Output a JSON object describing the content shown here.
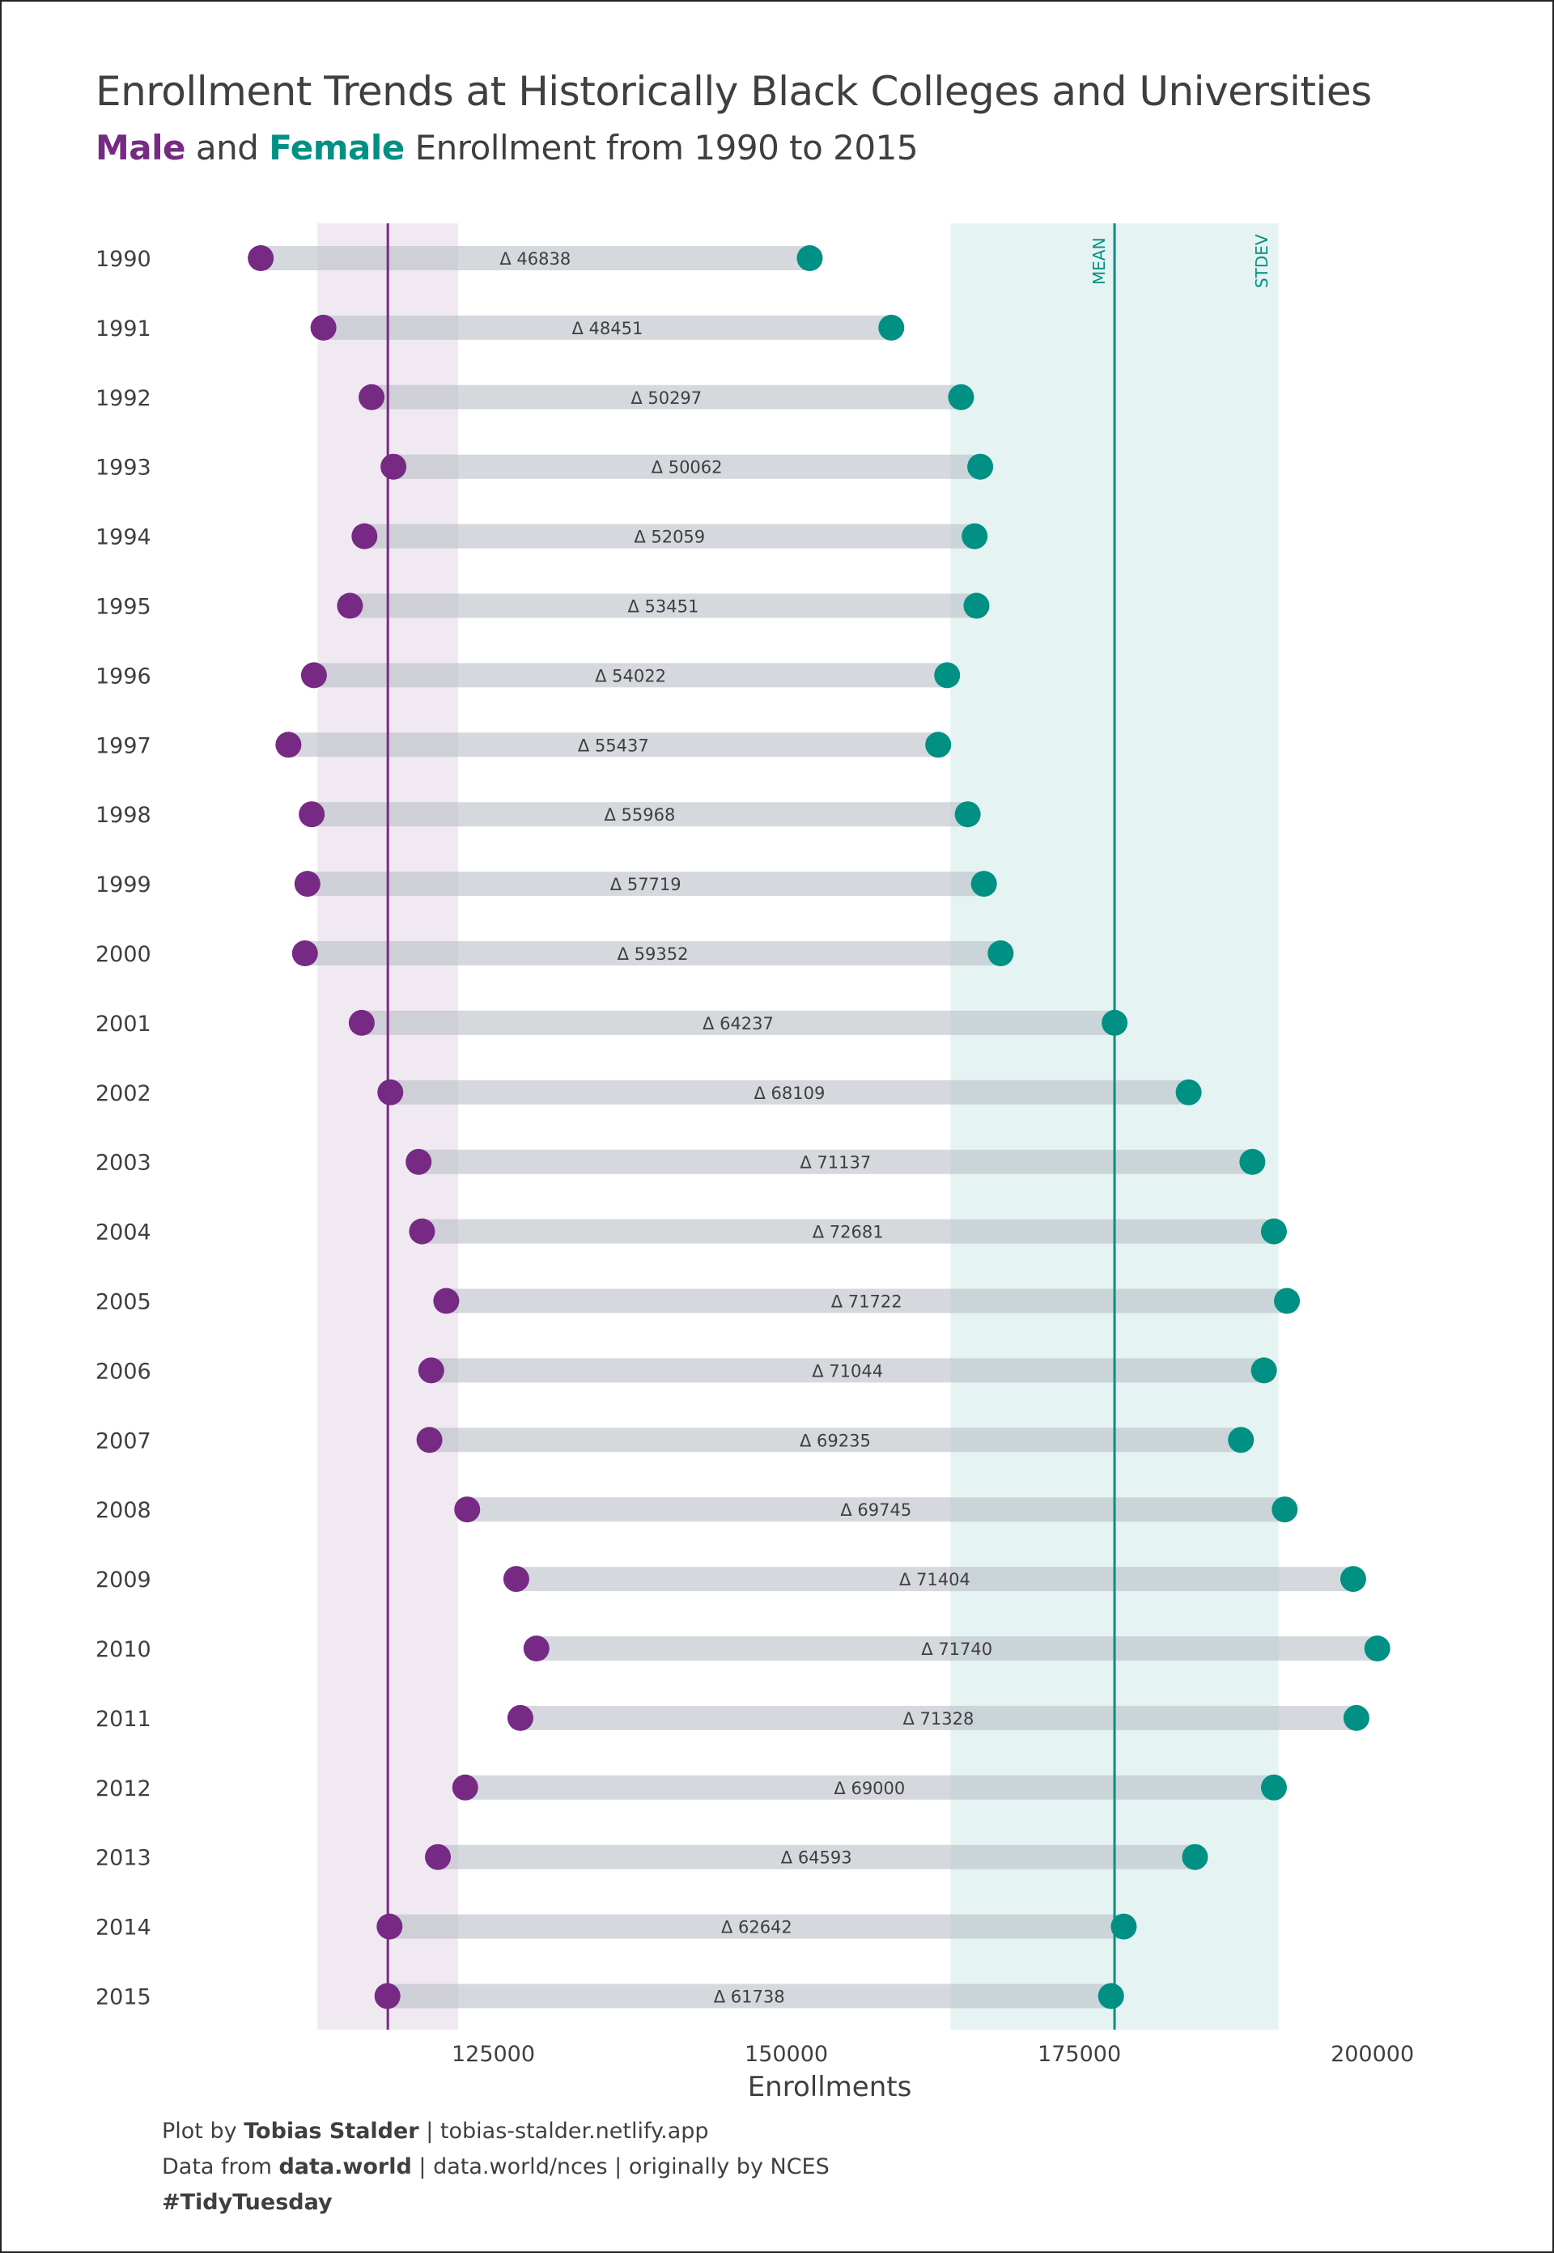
{
  "header": {
    "title": "Enrollment Trends at Historically Black Colleges and Universities",
    "subtitle_male": "Male",
    "subtitle_and": "and",
    "subtitle_female": "Female",
    "subtitle_rest": "Enrollment from 1990 to 2015"
  },
  "chart_data": {
    "type": "dumbbell",
    "title": "Enrollment Trends at Historically Black Colleges and Universities",
    "subtitle": "Male and Female Enrollment from 1990 to 2015",
    "xlabel": "Enrollments",
    "ylabel": "",
    "xlim": [
      99000,
      207000
    ],
    "x_ticks": [
      125000,
      150000,
      175000,
      200000
    ],
    "x_tick_labels": [
      "125000",
      "150000",
      "175000",
      "200000"
    ],
    "categories": [
      "1990",
      "1991",
      "1992",
      "1993",
      "1994",
      "1995",
      "1996",
      "1997",
      "1998",
      "1999",
      "2000",
      "2001",
      "2002",
      "2003",
      "2004",
      "2005",
      "2006",
      "2007",
      "2008",
      "2009",
      "2010",
      "2011",
      "2012",
      "2013",
      "2014",
      "2015"
    ],
    "series": [
      {
        "name": "Male",
        "color": "#762a83",
        "values": [
          105157,
          110506,
          114610,
          116479,
          114006,
          112769,
          109696,
          107520,
          109506,
          109138,
          108930,
          113768,
          116213,
          118625,
          118916,
          120985,
          119702,
          119550,
          122772,
          126959,
          128677,
          127308,
          122599,
          120270,
          116146,
          115965
        ]
      },
      {
        "name": "Female",
        "color": "#009084",
        "values": [
          151995,
          158957,
          164907,
          166541,
          166065,
          166220,
          163718,
          162957,
          165474,
          166857,
          168282,
          178005,
          184322,
          189762,
          191597,
          192707,
          190746,
          188785,
          192517,
          198363,
          200417,
          198636,
          191599,
          184863,
          178788,
          177703
        ]
      }
    ],
    "differences": [
      46838,
      48451,
      50297,
      50062,
      52059,
      53451,
      54022,
      55437,
      55968,
      57719,
      59352,
      64237,
      68109,
      71137,
      72681,
      71722,
      71044,
      69235,
      69745,
      71404,
      71740,
      71328,
      69000,
      64593,
      62642,
      61738
    ],
    "difference_prefix": "Δ",
    "male_mean": 116000,
    "male_sd": 6000,
    "female_mean": 178000,
    "female_sd": 14000,
    "mean_label": "MEAN",
    "stdev_label": "STDEV",
    "grid": false,
    "legend": "subtitle"
  },
  "caption": {
    "line1_prefix": "Plot by",
    "line1_author": "Tobias Stalder",
    "line1_rest": "| tobias-stalder.netlify.app",
    "line2_prefix": "Data from",
    "line2_source": "data.world",
    "line2_rest": "| data.world/nces | originally by NCES",
    "line3": "#TidyTuesday"
  }
}
